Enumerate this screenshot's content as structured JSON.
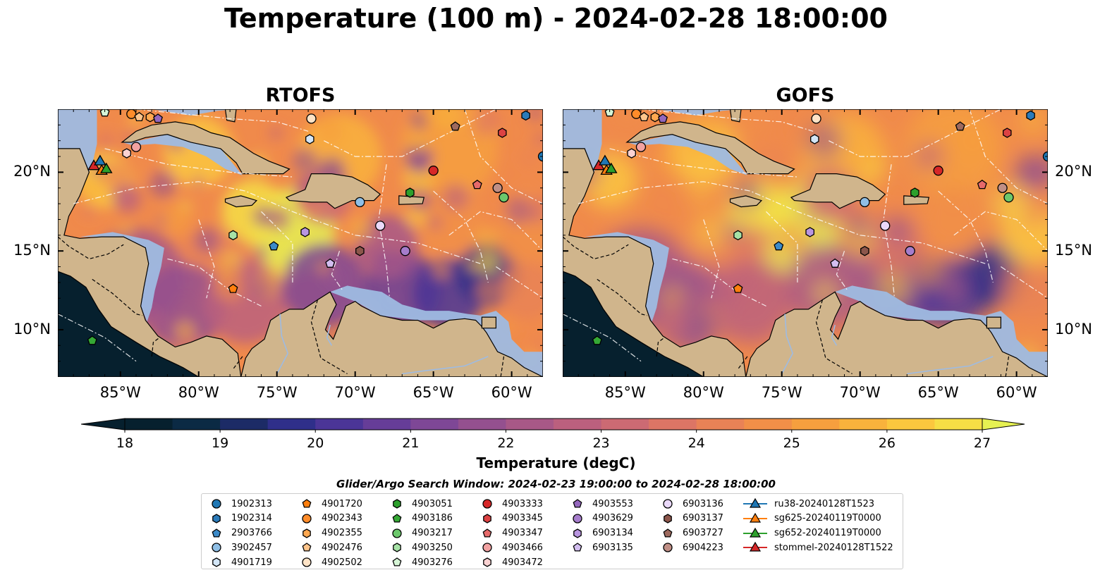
{
  "title": "Temperature (100 m) - 2024-02-28 18:00:00",
  "panels": [
    {
      "title": "RTOFS"
    },
    {
      "title": "GOFS"
    }
  ],
  "lon_ticks": [
    "85°W",
    "80°W",
    "75°W",
    "70°W",
    "65°W",
    "60°W"
  ],
  "lat_ticks": [
    "20°N",
    "15°N",
    "10°N"
  ],
  "extent": {
    "lon": [
      -89,
      -58
    ],
    "lat": [
      7,
      24
    ]
  },
  "colorbar": {
    "label": "Temperature (degC)",
    "ticks": [
      "18",
      "19",
      "20",
      "21",
      "22",
      "23",
      "24",
      "25",
      "26",
      "27"
    ],
    "range": [
      18,
      27
    ],
    "colors": [
      "#06202e",
      "#0b2a44",
      "#1c2b66",
      "#2f2f8a",
      "#4b3597",
      "#663d98",
      "#7e4796",
      "#94508f",
      "#a85887",
      "#bb607e",
      "#cc6a73",
      "#dc7565",
      "#e98256",
      "#f18f48",
      "#f69f3e",
      "#f9b23c",
      "#fbc73e",
      "#f6de45",
      "#e6f152"
    ],
    "extend": "both"
  },
  "search_window": "Glider/Argo Search Window: 2024-02-23 19:00:00 to 2024-02-28 18:00:00",
  "legend": [
    {
      "label": "1902313",
      "marker": "circle",
      "color": "#1f77b4"
    },
    {
      "label": "1902314",
      "marker": "hexagon",
      "color": "#2b7bba"
    },
    {
      "label": "2903766",
      "marker": "pentagon",
      "color": "#3b8ac8"
    },
    {
      "label": "3902457",
      "marker": "circle",
      "color": "#8fbfe6"
    },
    {
      "label": "4901719",
      "marker": "hexagon",
      "color": "#d3e6f7"
    },
    {
      "label": "4901720",
      "marker": "pentagon",
      "color": "#ff7f0e"
    },
    {
      "label": "4902343",
      "marker": "circle",
      "color": "#ff8c2a"
    },
    {
      "label": "4902355",
      "marker": "hexagon",
      "color": "#ffa850"
    },
    {
      "label": "4902476",
      "marker": "pentagon",
      "color": "#ffc58c"
    },
    {
      "label": "4902502",
      "marker": "circle",
      "color": "#ffe3c6"
    },
    {
      "label": "4903051",
      "marker": "hexagon",
      "color": "#2ca02c"
    },
    {
      "label": "4903186",
      "marker": "pentagon",
      "color": "#35a835"
    },
    {
      "label": "4903217",
      "marker": "circle",
      "color": "#6cc86c"
    },
    {
      "label": "4903250",
      "marker": "hexagon",
      "color": "#a6e2a6"
    },
    {
      "label": "4903276",
      "marker": "pentagon",
      "color": "#d6f5d6"
    },
    {
      "label": "4903333",
      "marker": "circle",
      "color": "#d62728"
    },
    {
      "label": "4903345",
      "marker": "hexagon",
      "color": "#dc4243"
    },
    {
      "label": "4903347",
      "marker": "pentagon",
      "color": "#e66a6a"
    },
    {
      "label": "4903466",
      "marker": "circle",
      "color": "#f2a2a2"
    },
    {
      "label": "4903472",
      "marker": "hexagon",
      "color": "#fad2d2"
    },
    {
      "label": "4903553",
      "marker": "pentagon",
      "color": "#9467bd"
    },
    {
      "label": "4903629",
      "marker": "circle",
      "color": "#a67dcc"
    },
    {
      "label": "6903134",
      "marker": "hexagon",
      "color": "#b996e0"
    },
    {
      "label": "6903135",
      "marker": "pentagon",
      "color": "#d3bef0"
    },
    {
      "label": "6903136",
      "marker": "circle",
      "color": "#ead9fa"
    },
    {
      "label": "6903137",
      "marker": "hexagon",
      "color": "#8c564b"
    },
    {
      "label": "6903727",
      "marker": "pentagon",
      "color": "#9e6a5e"
    },
    {
      "label": "6904223",
      "marker": "circle",
      "color": "#c08f86"
    },
    {
      "label": "ru38-20240128T1523",
      "marker": "triangle-line",
      "color": "#1f77b4"
    },
    {
      "label": "sg625-20240119T0000",
      "marker": "triangle-line",
      "color": "#ff7f0e"
    },
    {
      "label": "sg652-20240119T0000",
      "marker": "triangle-line",
      "color": "#2ca02c"
    },
    {
      "label": "stommel-20240128T1522",
      "marker": "triangle-line",
      "color": "#d62728"
    }
  ],
  "floats": [
    {
      "id": "1902313",
      "lon": -58.0,
      "lat": 21.0
    },
    {
      "id": "1902314",
      "lon": -59.1,
      "lat": 23.6
    },
    {
      "id": "2903766",
      "lon": -75.2,
      "lat": 15.3
    },
    {
      "id": "3902457",
      "lon": -69.7,
      "lat": 18.1
    },
    {
      "id": "4901719",
      "lon": -72.9,
      "lat": 22.1
    },
    {
      "id": "4901720",
      "lon": -77.8,
      "lat": 12.6
    },
    {
      "id": "4902343",
      "lon": -84.3,
      "lat": 23.7
    },
    {
      "id": "4902355",
      "lon": -83.1,
      "lat": 23.5
    },
    {
      "id": "4902476",
      "lon": -83.8,
      "lat": 23.5
    },
    {
      "id": "4902502",
      "lon": -72.8,
      "lat": 23.4
    },
    {
      "id": "4903051",
      "lon": -66.5,
      "lat": 18.7
    },
    {
      "id": "4903186",
      "lon": -86.8,
      "lat": 9.3
    },
    {
      "id": "4903217",
      "lon": -60.5,
      "lat": 18.4
    },
    {
      "id": "4903250",
      "lon": -77.8,
      "lat": 16.0
    },
    {
      "id": "4903276",
      "lon": -86.0,
      "lat": 23.8
    },
    {
      "id": "4903333",
      "lon": -65.0,
      "lat": 20.1
    },
    {
      "id": "4903345",
      "lon": -60.6,
      "lat": 22.5
    },
    {
      "id": "4903347",
      "lon": -62.2,
      "lat": 19.2
    },
    {
      "id": "4903466",
      "lon": -84.0,
      "lat": 21.6
    },
    {
      "id": "4903472",
      "lon": -84.6,
      "lat": 21.2
    },
    {
      "id": "4903553",
      "lon": -82.6,
      "lat": 23.4
    },
    {
      "id": "4903629",
      "lon": -66.8,
      "lat": 15.0
    },
    {
      "id": "6903134",
      "lon": -73.2,
      "lat": 16.2
    },
    {
      "id": "6903135",
      "lon": -71.6,
      "lat": 14.2
    },
    {
      "id": "6903136",
      "lon": -68.4,
      "lat": 16.6
    },
    {
      "id": "6903137",
      "lon": -69.7,
      "lat": 15.0
    },
    {
      "id": "6903727",
      "lon": -63.6,
      "lat": 22.9
    },
    {
      "id": "6904223",
      "lon": -60.9,
      "lat": 19.0
    }
  ],
  "gliders": [
    {
      "id": "stommel-20240128T1522",
      "lon": -86.7,
      "lat": 20.4
    },
    {
      "id": "sg625-20240119T0000",
      "lon": -86.2,
      "lat": 20.1
    },
    {
      "id": "sg652-20240119T0000",
      "lon": -85.9,
      "lat": 20.2
    },
    {
      "id": "ru38-20240128T1523",
      "lon": -86.3,
      "lat": 20.7
    }
  ]
}
